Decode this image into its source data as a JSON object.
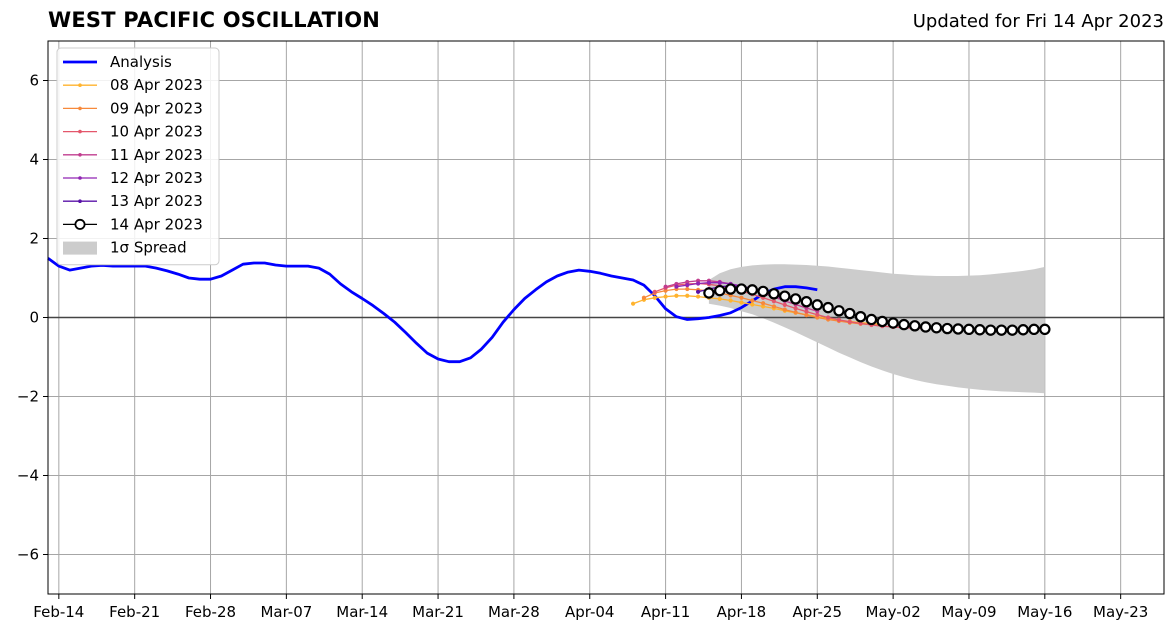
{
  "page": {
    "title": "WEST PACIFIC OSCILLATION",
    "subtitle": "Updated for Fri 14 Apr 2023"
  },
  "chart_data": {
    "type": "line",
    "title": "WEST PACIFIC OSCILLATION",
    "subtitle": "Updated for Fri 14 Apr 2023",
    "xlabel": "",
    "ylabel": "",
    "xlim": [
      "2023-02-13",
      "2023-05-27"
    ],
    "ylim": [
      -7,
      7
    ],
    "x_ticks": [
      "Feb-14",
      "Feb-21",
      "Feb-28",
      "Mar-07",
      "Mar-14",
      "Mar-21",
      "Mar-28",
      "Apr-04",
      "Apr-11",
      "Apr-18",
      "Apr-25",
      "May-02",
      "May-09",
      "May-16",
      "May-23"
    ],
    "x_tick_dates": [
      "2023-02-14",
      "2023-02-21",
      "2023-02-28",
      "2023-03-07",
      "2023-03-14",
      "2023-03-21",
      "2023-03-28",
      "2023-04-04",
      "2023-04-11",
      "2023-04-18",
      "2023-04-25",
      "2023-05-02",
      "2023-05-09",
      "2023-05-16",
      "2023-05-23"
    ],
    "y_ticks": [
      6,
      4,
      2,
      0,
      -2,
      -4,
      -6
    ],
    "y_tick_labels": [
      "6",
      "4",
      "2",
      "0",
      "−2",
      "−4",
      "−6"
    ],
    "grid": true,
    "legend_position": "top-left",
    "series": [
      {
        "name": "Analysis",
        "color": "#0000ff",
        "marker": "none",
        "start_date": "2023-02-13",
        "values": [
          1.5,
          1.3,
          1.2,
          1.25,
          1.3,
          1.32,
          1.3,
          1.3,
          1.3,
          1.3,
          1.25,
          1.18,
          1.1,
          1.0,
          0.97,
          0.97,
          1.05,
          1.2,
          1.35,
          1.38,
          1.38,
          1.33,
          1.3,
          1.3,
          1.3,
          1.25,
          1.1,
          0.85,
          0.65,
          0.48,
          0.3,
          0.1,
          -0.12,
          -0.38,
          -0.65,
          -0.9,
          -1.05,
          -1.12,
          -1.12,
          -1.02,
          -0.8,
          -0.5,
          -0.12,
          0.2,
          0.48,
          0.7,
          0.9,
          1.05,
          1.15,
          1.2,
          1.17,
          1.12,
          1.05,
          1.0,
          0.95,
          0.82,
          0.55,
          0.22,
          0.02,
          -0.05,
          -0.03,
          0.0,
          0.05,
          0.12,
          0.25,
          0.42,
          0.6,
          0.72,
          0.78,
          0.78,
          0.75,
          0.7
        ]
      },
      {
        "name": "08 Apr 2023",
        "color": "#ffb32e",
        "marker": "small",
        "start_date": "2023-04-08",
        "values": [
          0.35,
          0.45,
          0.5,
          0.53,
          0.55,
          0.55,
          0.53,
          0.5,
          0.47,
          0.43,
          0.38,
          0.33,
          0.28,
          0.23,
          0.17,
          0.12,
          0.07,
          0.02,
          -0.03,
          -0.07,
          -0.1,
          -0.13,
          -0.15,
          -0.17
        ]
      },
      {
        "name": "09 Apr 2023",
        "color": "#f7893b",
        "marker": "small",
        "start_date": "2023-04-09",
        "values": [
          0.5,
          0.62,
          0.68,
          0.72,
          0.72,
          0.7,
          0.67,
          0.62,
          0.56,
          0.5,
          0.43,
          0.36,
          0.28,
          0.2,
          0.13,
          0.06,
          0.0,
          -0.05,
          -0.09,
          -0.13,
          -0.16,
          -0.18,
          -0.2
        ]
      },
      {
        "name": "10 Apr 2023",
        "color": "#e4576b",
        "marker": "small",
        "start_date": "2023-04-10",
        "values": [
          0.65,
          0.75,
          0.82,
          0.85,
          0.86,
          0.84,
          0.8,
          0.74,
          0.67,
          0.59,
          0.5,
          0.41,
          0.32,
          0.23,
          0.15,
          0.07,
          0.0,
          -0.06,
          -0.11,
          -0.15,
          -0.19,
          -0.22,
          -0.24,
          -0.26,
          -0.27,
          -0.28,
          -0.29,
          -0.3
        ]
      },
      {
        "name": "11 Apr 2023",
        "color": "#c13d8f",
        "marker": "small",
        "start_date": "2023-04-11",
        "values": [
          0.78,
          0.85,
          0.9,
          0.93,
          0.93,
          0.9,
          0.85,
          0.78,
          0.7,
          0.61,
          0.52,
          0.42,
          0.33,
          0.24,
          0.16
        ]
      },
      {
        "name": "12 Apr 2023",
        "color": "#9024b3",
        "marker": "small",
        "start_date": "2023-04-12",
        "values": [
          0.78,
          0.82,
          0.86,
          0.88,
          0.88,
          0.85,
          0.8,
          0.73,
          0.65,
          0.56,
          0.46
        ]
      },
      {
        "name": "13 Apr 2023",
        "color": "#5a12a8",
        "marker": "small",
        "start_date": "2023-04-14",
        "values": [
          0.65,
          0.72,
          0.78,
          0.8,
          0.78,
          0.74,
          0.68,
          0.6
        ]
      },
      {
        "name": "14 Apr 2023",
        "color": "#000000",
        "marker": "open-circle",
        "start_date": "2023-04-15",
        "values": [
          0.62,
          0.68,
          0.72,
          0.72,
          0.7,
          0.66,
          0.6,
          0.54,
          0.47,
          0.4,
          0.32,
          0.25,
          0.17,
          0.1,
          0.02,
          -0.05,
          -0.1,
          -0.14,
          -0.18,
          -0.21,
          -0.24,
          -0.26,
          -0.28,
          -0.29,
          -0.3,
          -0.31,
          -0.32,
          -0.32,
          -0.32,
          -0.31,
          -0.3,
          -0.3
        ]
      }
    ],
    "spread": {
      "name": "1σ Spread",
      "color": "#cccccc",
      "start_date": "2023-04-15",
      "upper": [
        0.95,
        1.12,
        1.22,
        1.28,
        1.32,
        1.34,
        1.35,
        1.35,
        1.34,
        1.33,
        1.31,
        1.29,
        1.26,
        1.23,
        1.2,
        1.17,
        1.14,
        1.11,
        1.09,
        1.07,
        1.06,
        1.05,
        1.05,
        1.05,
        1.06,
        1.07,
        1.09,
        1.12,
        1.15,
        1.18,
        1.22,
        1.28
      ],
      "lower": [
        0.35,
        0.3,
        0.24,
        0.16,
        0.08,
        -0.02,
        -0.13,
        -0.25,
        -0.37,
        -0.5,
        -0.63,
        -0.76,
        -0.89,
        -1.01,
        -1.13,
        -1.24,
        -1.34,
        -1.43,
        -1.51,
        -1.58,
        -1.64,
        -1.69,
        -1.73,
        -1.77,
        -1.8,
        -1.83,
        -1.85,
        -1.87,
        -1.88,
        -1.89,
        -1.9,
        -1.92
      ]
    }
  }
}
